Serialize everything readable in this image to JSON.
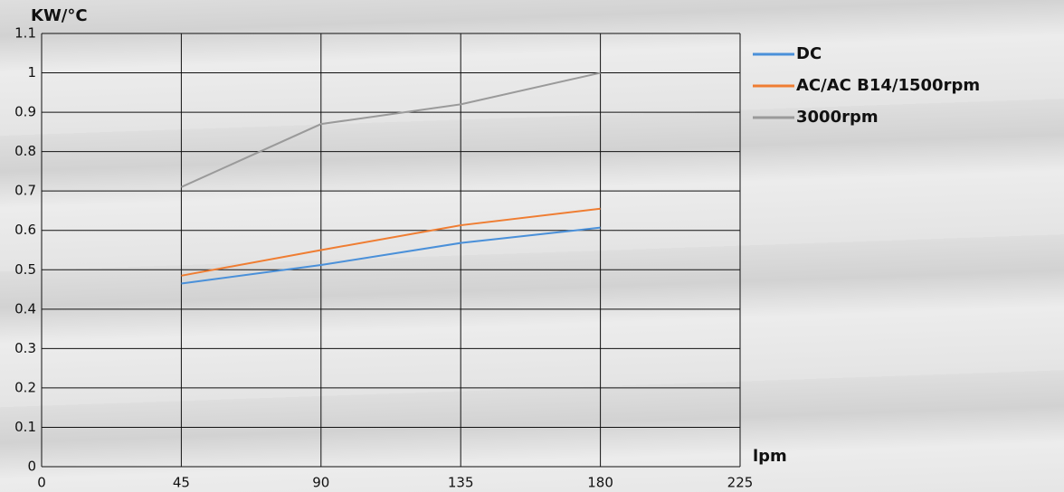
{
  "chart_data": {
    "type": "line",
    "y_label": "KW/°C",
    "x_label": "lpm",
    "x": [
      45,
      90,
      135,
      180
    ],
    "series": [
      {
        "name": "DC",
        "color": "#4a90d9",
        "values": [
          0.465,
          0.512,
          0.568,
          0.607
        ]
      },
      {
        "name": "AC/AC B14/1500rpm",
        "color": "#ef7d32",
        "values": [
          0.485,
          0.55,
          0.613,
          0.655
        ]
      },
      {
        "name": "3000rpm",
        "color": "#9a9a9a",
        "values": [
          0.71,
          0.87,
          0.92,
          1.0
        ]
      }
    ],
    "xlim": [
      0,
      225
    ],
    "xticks": [
      0,
      45,
      90,
      135,
      180,
      225
    ],
    "ylim": [
      0,
      1.1
    ],
    "yticks": [
      0,
      0.1,
      0.2,
      0.3,
      0.4,
      0.5,
      0.6,
      0.7,
      0.8,
      0.9,
      1,
      1.1
    ],
    "grid": true,
    "legend": "right"
  }
}
